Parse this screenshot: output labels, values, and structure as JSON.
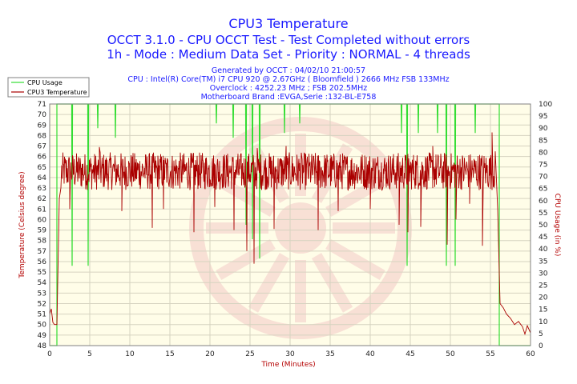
{
  "chart_data": {
    "type": "line",
    "title": "CPU3 Temperature",
    "subtitle_lines": [
      "OCCT 3.1.0 - CPU OCCT Test - Test Completed without errors",
      "1h - Mode : Medium Data Set - Priority : NORMAL - 4 threads"
    ],
    "info_lines": [
      "Generated by OCCT : 04/02/10 21:00:57",
      "CPU : Intel(R) Core(TM) i7 CPU 920 @ 2.67GHz ( Bloomfield ) 2666 MHz FSB 133MHz",
      "Overclock : 4252.23 MHz ; FSB 202.5MHz",
      "Motherboard Brand :EVGA,Serie :132-BL-E758"
    ],
    "xlabel": "Time (Minutes)",
    "ylabel_left": "Temperature (Celsius degree)",
    "ylabel_right": "CPU Usage (in %)",
    "xlim": [
      0,
      60
    ],
    "ylim_left": [
      48,
      71
    ],
    "ylim_right": [
      0,
      100
    ],
    "x_ticks": [
      0,
      5,
      10,
      15,
      20,
      25,
      30,
      35,
      40,
      45,
      50,
      55,
      60
    ],
    "y_ticks_left": [
      48,
      49,
      50,
      51,
      52,
      53,
      54,
      55,
      56,
      57,
      58,
      59,
      60,
      61,
      62,
      63,
      64,
      65,
      66,
      67,
      68,
      69,
      70,
      71
    ],
    "y_ticks_right": [
      0,
      5,
      10,
      15,
      20,
      25,
      30,
      35,
      40,
      45,
      50,
      55,
      60,
      65,
      70,
      75,
      80,
      85,
      90,
      95,
      100
    ],
    "legend": [
      "CPU Usage",
      "CPU3 Temperature"
    ],
    "legend_position": "top-left",
    "grid": true,
    "colors": {
      "usage": "#33dd33",
      "temperature": "#aa0000",
      "plot_bg": "#fffde8",
      "grid": "#d6d3c0",
      "watermark": "#f6d8d0"
    },
    "series": [
      {
        "name": "CPU Usage",
        "axis": "right",
        "baseline": 100,
        "start": 0.9,
        "end": 56.1,
        "before_start": 0,
        "after_end": 0,
        "dips": [
          {
            "x": 2.8,
            "value": 33
          },
          {
            "x": 4.8,
            "value": 33
          },
          {
            "x": 6.0,
            "value": 90
          },
          {
            "x": 8.2,
            "value": 86
          },
          {
            "x": 20.8,
            "value": 92
          },
          {
            "x": 22.9,
            "value": 86
          },
          {
            "x": 24.5,
            "value": 50
          },
          {
            "x": 25.3,
            "value": 44
          },
          {
            "x": 26.2,
            "value": 36
          },
          {
            "x": 29.3,
            "value": 88
          },
          {
            "x": 31.2,
            "value": 92
          },
          {
            "x": 43.9,
            "value": 88
          },
          {
            "x": 44.6,
            "value": 33
          },
          {
            "x": 46.0,
            "value": 88
          },
          {
            "x": 48.4,
            "value": 88
          },
          {
            "x": 49.5,
            "value": 33
          },
          {
            "x": 50.6,
            "value": 33
          },
          {
            "x": 53.1,
            "value": 88
          }
        ]
      },
      {
        "name": "CPU3 Temperature",
        "axis": "left",
        "start_points": [
          [
            0.0,
            51.0
          ],
          [
            0.2,
            51.5
          ],
          [
            0.4,
            50.2
          ],
          [
            0.6,
            50.0
          ],
          [
            0.9,
            50.0
          ],
          [
            1.05,
            56.0
          ],
          [
            1.2,
            62.0
          ],
          [
            1.4,
            63.0
          ]
        ],
        "load_range": [
          1.5,
          55.5
        ],
        "load_mean": 64.6,
        "load_spread": 1.0,
        "spikes": [
          {
            "x": 2.5,
            "value": 61.0
          },
          {
            "x": 6.2,
            "value": 66.9
          },
          {
            "x": 9.0,
            "value": 60.8
          },
          {
            "x": 12.8,
            "value": 59.2
          },
          {
            "x": 14.2,
            "value": 61.0
          },
          {
            "x": 18.0,
            "value": 58.8
          },
          {
            "x": 20.6,
            "value": 61.2
          },
          {
            "x": 23.0,
            "value": 59.0
          },
          {
            "x": 24.6,
            "value": 57.0
          },
          {
            "x": 25.5,
            "value": 55.8
          },
          {
            "x": 25.9,
            "value": 66.8
          },
          {
            "x": 28.0,
            "value": 59.1
          },
          {
            "x": 29.5,
            "value": 67.0
          },
          {
            "x": 33.5,
            "value": 59.0
          },
          {
            "x": 36.0,
            "value": 60.8
          },
          {
            "x": 40.0,
            "value": 61.0
          },
          {
            "x": 43.6,
            "value": 59.5
          },
          {
            "x": 44.7,
            "value": 58.8
          },
          {
            "x": 46.3,
            "value": 59.3
          },
          {
            "x": 47.8,
            "value": 67.0
          },
          {
            "x": 49.6,
            "value": 57.6
          },
          {
            "x": 50.7,
            "value": 60.0
          },
          {
            "x": 52.4,
            "value": 61.5
          },
          {
            "x": 54.0,
            "value": 57.5
          },
          {
            "x": 55.2,
            "value": 68.3
          }
        ],
        "end_points": [
          [
            55.6,
            66.5
          ],
          [
            55.9,
            61.0
          ],
          [
            56.2,
            52.0
          ],
          [
            56.6,
            51.6
          ],
          [
            57.0,
            51.0
          ],
          [
            57.5,
            50.6
          ],
          [
            58.0,
            50.0
          ],
          [
            58.5,
            50.3
          ],
          [
            59.0,
            49.8
          ],
          [
            59.3,
            49.1
          ],
          [
            59.6,
            49.9
          ],
          [
            60.0,
            49.2
          ]
        ]
      }
    ]
  }
}
